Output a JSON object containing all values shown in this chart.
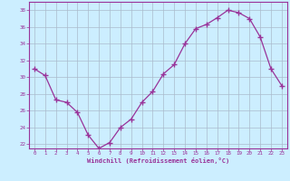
{
  "x": [
    0,
    1,
    2,
    3,
    4,
    5,
    6,
    7,
    8,
    9,
    10,
    11,
    12,
    13,
    14,
    15,
    16,
    17,
    18,
    19,
    20,
    21,
    22,
    23
  ],
  "y": [
    31.0,
    30.2,
    27.3,
    27.0,
    25.8,
    23.1,
    21.5,
    22.2,
    24.0,
    25.0,
    27.0,
    28.3,
    30.4,
    31.5,
    34.0,
    35.8,
    36.3,
    37.1,
    38.0,
    37.7,
    37.0,
    34.8,
    31.0,
    29.0
  ],
  "line_color": "#993399",
  "marker": "+",
  "marker_size": 4,
  "bg_color": "#cceeff",
  "grid_color": "#aabbcc",
  "xlabel": "Windchill (Refroidissement éolien,°C)",
  "xlabel_color": "#993399",
  "tick_color": "#993399",
  "spine_color": "#993399",
  "ylim": [
    21.5,
    39
  ],
  "xlim": [
    -0.5,
    23.5
  ],
  "yticks": [
    22,
    24,
    26,
    28,
    30,
    32,
    34,
    36,
    38
  ],
  "xticks": [
    0,
    1,
    2,
    3,
    4,
    5,
    6,
    7,
    8,
    9,
    10,
    11,
    12,
    13,
    14,
    15,
    16,
    17,
    18,
    19,
    20,
    21,
    22,
    23
  ],
  "xtick_labels": [
    "0",
    "1",
    "2",
    "3",
    "4",
    "5",
    "6",
    "7",
    "8",
    "9",
    "10",
    "11",
    "12",
    "13",
    "14",
    "15",
    "16",
    "17",
    "18",
    "19",
    "20",
    "21",
    "22",
    "23"
  ]
}
